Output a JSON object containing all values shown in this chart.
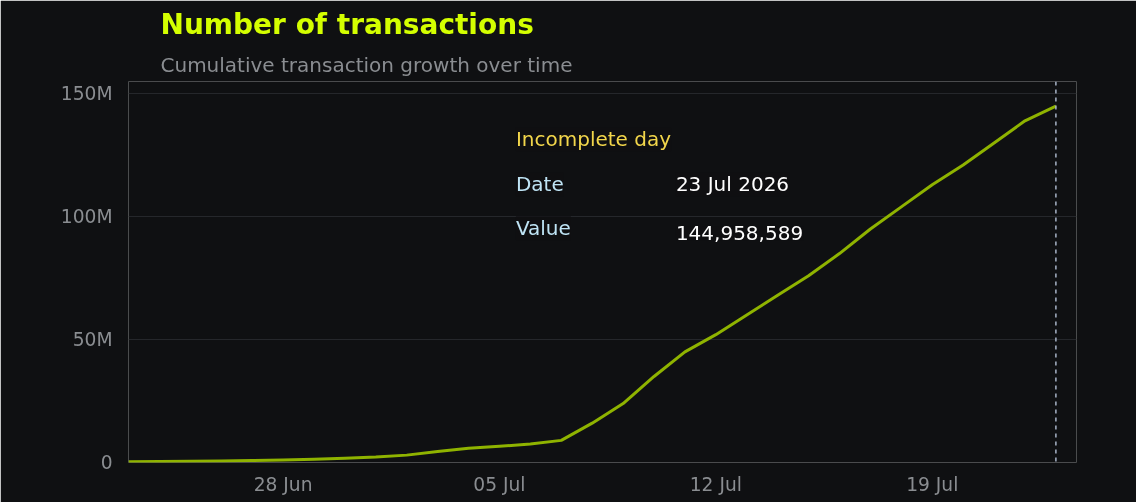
{
  "chart_data": {
    "type": "line",
    "title": "Number of transactions",
    "subtitle": "Cumulative transaction growth over time",
    "x": [
      "2026-06-23",
      "2026-06-24",
      "2026-06-25",
      "2026-06-26",
      "2026-06-27",
      "2026-06-28",
      "2026-06-29",
      "2026-06-30",
      "2026-07-01",
      "2026-07-02",
      "2026-07-03",
      "2026-07-04",
      "2026-07-05",
      "2026-07-06",
      "2026-07-07",
      "2026-07-08",
      "2026-07-09",
      "2026-07-10",
      "2026-07-11",
      "2026-07-12",
      "2026-07-13",
      "2026-07-14",
      "2026-07-15",
      "2026-07-16",
      "2026-07-17",
      "2026-07-18",
      "2026-07-19",
      "2026-07-20",
      "2026-07-21",
      "2026-07-22",
      "2026-07-23"
    ],
    "series": [
      {
        "color": "#8fb300",
        "values": [
          300000,
          400000,
          500000,
          600000,
          800000,
          1000000,
          1300000,
          1700000,
          2200000,
          3000000,
          4500000,
          5800000,
          6600000,
          7500000,
          9000000,
          16000000,
          24000000,
          35000000,
          45000000,
          52000000,
          60000000,
          68000000,
          76000000,
          85000000,
          95000000,
          104000000,
          113000000,
          121000000,
          130000000,
          139000000,
          144958589
        ]
      }
    ],
    "xlim": [
      "2026-06-23",
      "2026-07-23T16:00"
    ],
    "xticks": [
      {
        "value": "2026-06-28",
        "label": "28 Jun"
      },
      {
        "value": "2026-07-05",
        "label": "05 Jul"
      },
      {
        "value": "2026-07-12",
        "label": "12 Jul"
      },
      {
        "value": "2026-07-19",
        "label": "19 Jul"
      }
    ],
    "ylim": [
      0,
      155000000
    ],
    "yticks": [
      {
        "value": 0,
        "label": "0"
      },
      {
        "value": 50000000,
        "label": "50M"
      },
      {
        "value": 100000000,
        "label": "100M"
      },
      {
        "value": 150000000,
        "label": "150M"
      }
    ],
    "grid": "y",
    "ref_lines": [
      {
        "axis": "x",
        "value": "2026-07-23",
        "label": null,
        "color": "#a8b4c8",
        "line_style": "dashed"
      }
    ],
    "annotations": [
      "Incomplete day",
      "Date",
      "23 Jul 2026",
      "Value",
      "144,958,589"
    ]
  }
}
